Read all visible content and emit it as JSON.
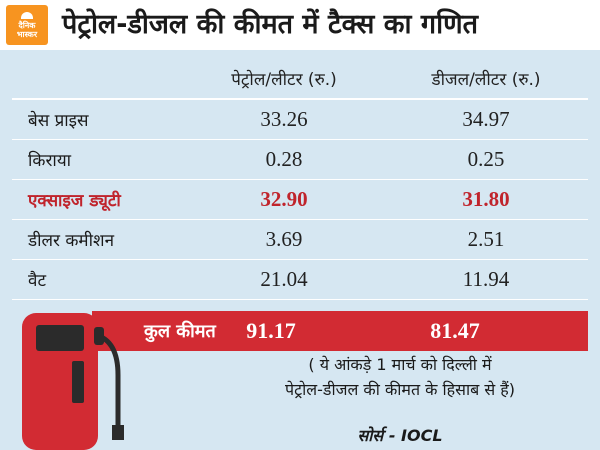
{
  "header": {
    "logo_line1": "दैनिक",
    "logo_line2": "भास्कर",
    "title": "पेट्रोल-डीजल की कीमत में टैक्स का गणित"
  },
  "table": {
    "columns": [
      "पेट्रोल/लीटर (रु.)",
      "डीजल/लीटर (रु.)"
    ],
    "rows": [
      {
        "label": "बेस प्राइस",
        "petrol": "33.26",
        "diesel": "34.97"
      },
      {
        "label": "किराया",
        "petrol": "0.28",
        "diesel": "0.25"
      },
      {
        "label": "एक्साइज ड्यूटी",
        "petrol": "32.90",
        "diesel": "31.80"
      },
      {
        "label": "डीलर कमीशन",
        "petrol": "3.69",
        "diesel": "2.51"
      },
      {
        "label": "वैट",
        "petrol": "21.04",
        "diesel": "11.94"
      }
    ],
    "total": {
      "label": "कुल कीमत",
      "petrol": "91.17",
      "diesel": "81.47"
    }
  },
  "note": {
    "line1": "( ये आंकड़े 1 मार्च को दिल्ली में",
    "line2": "पेट्रोल-डीजल की कीमत के हिसाब से हैं)"
  },
  "source": "सोर्स - IOCL",
  "colors": {
    "background": "#d6e7f2",
    "highlight_red": "#c0242c",
    "total_bar": "#d22b33",
    "logo_orange": "#f79420"
  },
  "icons": [
    "fuel-pump-icon"
  ]
}
